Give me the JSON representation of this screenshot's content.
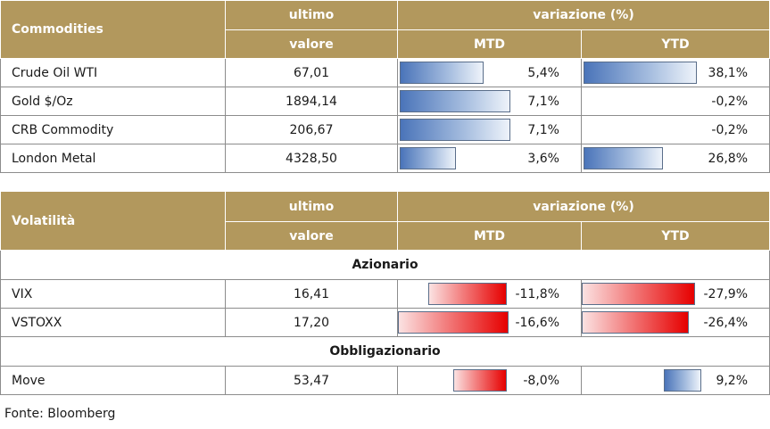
{
  "commodities": {
    "title": "Commodities",
    "col_last_1": "ultimo",
    "col_last_2": "valore",
    "col_change": "variazione (%)",
    "col_mtd": "MTD",
    "col_ytd": "YTD",
    "rows": [
      {
        "name": "Crude Oil WTI",
        "value": "67,01",
        "mtd": "5,4%",
        "mtd_num": 5.4,
        "ytd": "38,1%",
        "ytd_num": 38.1
      },
      {
        "name": "Gold $/Oz",
        "value": "1894,14",
        "mtd": "7,1%",
        "mtd_num": 7.1,
        "ytd": "-0,2%",
        "ytd_num": -0.2
      },
      {
        "name": "CRB Commodity",
        "value": "206,67",
        "mtd": "7,1%",
        "mtd_num": 7.1,
        "ytd": "-0,2%",
        "ytd_num": -0.2
      },
      {
        "name": "London Metal",
        "value": "4328,50",
        "mtd": "3,6%",
        "mtd_num": 3.6,
        "ytd": "26,8%",
        "ytd_num": 26.8
      }
    ]
  },
  "volatility": {
    "title": "Volatilità",
    "col_last_1": "ultimo",
    "col_last_2": "valore",
    "col_change": "variazione (%)",
    "col_mtd": "MTD",
    "col_ytd": "YTD",
    "section_equity": "Azionario",
    "section_bond": "Obbligazionario",
    "equity_rows": [
      {
        "name": "VIX",
        "value": "16,41",
        "mtd": "-11,8%",
        "mtd_num": -11.8,
        "ytd": "-27,9%",
        "ytd_num": -27.9
      },
      {
        "name": "VSTOXX",
        "value": "17,20",
        "mtd": "-16,6%",
        "mtd_num": -16.6,
        "ytd": "-26,4%",
        "ytd_num": -26.4
      }
    ],
    "bond_rows": [
      {
        "name": "Move",
        "value": "53,47",
        "mtd": "-8,0%",
        "mtd_num": -8.0,
        "ytd": "9,2%",
        "ytd_num": 9.2
      }
    ]
  },
  "source": "Fonte: Bloomberg",
  "colors": {
    "header": "#b2985d",
    "positive_bar": "#4a74b9",
    "negative_bar": "#e60000"
  }
}
